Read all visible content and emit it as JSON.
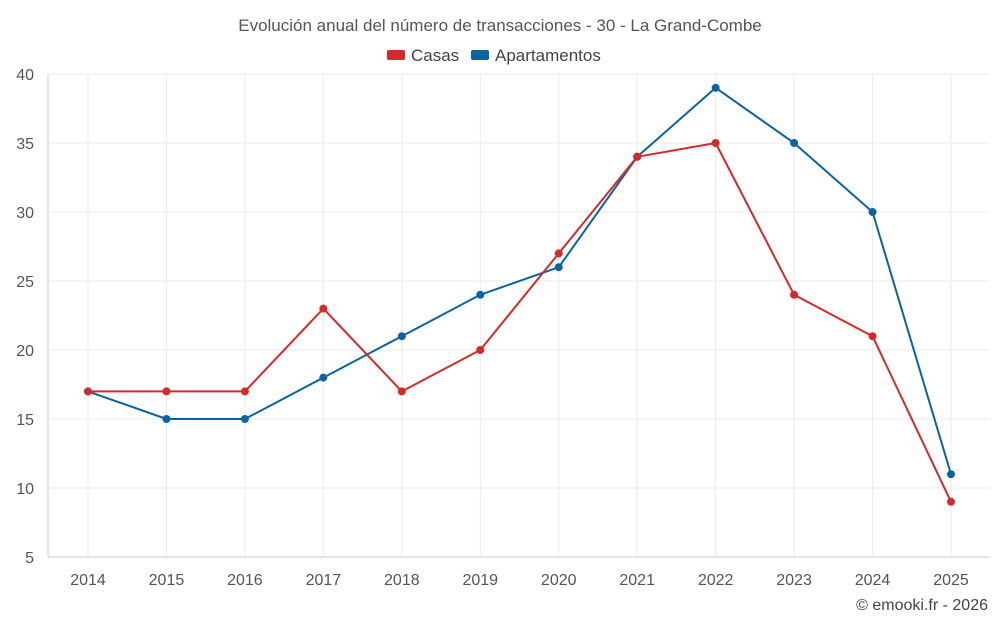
{
  "chart_data": {
    "type": "line",
    "title": "Evolución anual del número de transacciones - 30 - La Grand-Combe",
    "xlabel": "",
    "ylabel": "",
    "categories": [
      "2014",
      "2015",
      "2016",
      "2017",
      "2018",
      "2019",
      "2020",
      "2021",
      "2022",
      "2023",
      "2024",
      "2025"
    ],
    "ylim": [
      5,
      40
    ],
    "yticks": [
      5,
      10,
      15,
      20,
      25,
      30,
      35,
      40
    ],
    "grid": true,
    "legend_position": "top-center",
    "series": [
      {
        "name": "Casas",
        "color": "#d42a2a",
        "values": [
          17,
          17,
          17,
          23,
          17,
          20,
          27,
          34,
          35,
          24,
          21,
          9
        ]
      },
      {
        "name": "Apartamentos",
        "color": "#0b64a0",
        "values": [
          17,
          15,
          15,
          18,
          21,
          24,
          26,
          34,
          39,
          35,
          30,
          11
        ]
      }
    ]
  },
  "credit": "© emooki.fr - 2026"
}
